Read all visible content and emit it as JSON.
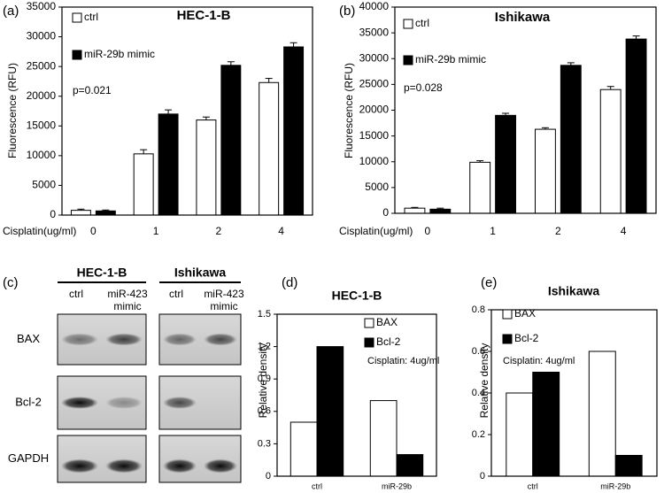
{
  "chart_data": [
    {
      "type": "bar",
      "panel_label": "(a)",
      "title": "HEC-1-B",
      "y_label": "Fluorescence (RFU)",
      "x_label": "Cisplatin(ug/ml)",
      "annotation": "p=0.021",
      "categories": [
        "0",
        "1",
        "2",
        "4"
      ],
      "series": [
        {
          "name": "ctrl",
          "color": "#ffffff",
          "values": [
            800,
            10300,
            16000,
            22300
          ],
          "errors": [
            200,
            700,
            500,
            700
          ]
        },
        {
          "name": "miR-29b mimic",
          "color": "#000000",
          "values": [
            700,
            17000,
            25200,
            28300
          ],
          "errors": [
            150,
            700,
            600,
            700
          ]
        }
      ],
      "ylim": [
        0,
        35000
      ],
      "yticks": [
        0,
        5000,
        10000,
        15000,
        20000,
        25000,
        30000,
        35000
      ]
    },
    {
      "type": "bar",
      "panel_label": "(b)",
      "title": "Ishikawa",
      "y_label": "Fluorescence (RFU)",
      "x_label": "Cisplatin(ug/ml)",
      "annotation": "p=0.028",
      "categories": [
        "0",
        "1",
        "2",
        "4"
      ],
      "series": [
        {
          "name": "ctrl",
          "color": "#ffffff",
          "values": [
            1000,
            9900,
            16300,
            24000
          ],
          "errors": [
            150,
            300,
            300,
            600
          ]
        },
        {
          "name": "miR-29b mimic",
          "color": "#000000",
          "values": [
            800,
            19000,
            28700,
            33800
          ],
          "errors": [
            200,
            400,
            500,
            600
          ]
        }
      ],
      "ylim": [
        0,
        40000
      ],
      "yticks": [
        0,
        5000,
        10000,
        15000,
        20000,
        25000,
        30000,
        35000,
        40000
      ]
    },
    {
      "type": "bar",
      "panel_label": "(d)",
      "title": "HEC-1-B",
      "y_label": "Relative density",
      "annotation": "Cisplatin: 4ug/ml",
      "categories": [
        "ctrl",
        "miR-29b"
      ],
      "series": [
        {
          "name": "BAX",
          "color": "#ffffff",
          "values": [
            0.5,
            0.7
          ]
        },
        {
          "name": "Bcl-2",
          "color": "#000000",
          "values": [
            1.2,
            0.2
          ]
        }
      ],
      "ylim": [
        0,
        1.5
      ],
      "yticks": [
        0,
        0.3,
        0.6,
        0.9,
        1.2,
        1.5
      ]
    },
    {
      "type": "bar",
      "panel_label": "(e)",
      "title": "Ishikawa",
      "y_label": "Relative density",
      "annotation": "Cisplatin: 4ug/ml",
      "categories": [
        "ctrl",
        "miR-29b"
      ],
      "series": [
        {
          "name": "BAX",
          "color": "#ffffff",
          "values": [
            0.4,
            0.6
          ]
        },
        {
          "name": "Bcl-2",
          "color": "#000000",
          "values": [
            0.5,
            0.1
          ]
        }
      ],
      "ylim": [
        0,
        0.8
      ],
      "yticks": [
        0,
        0.2,
        0.4,
        0.6,
        0.8
      ]
    }
  ],
  "blot": {
    "panel_label": "(c)",
    "groups": [
      {
        "title": "HEC-1-B",
        "lanes": [
          [
            "ctrl"
          ],
          [
            "miR-423",
            "mimic"
          ]
        ]
      },
      {
        "title": "Ishikawa",
        "lanes": [
          [
            "ctrl"
          ],
          [
            "miR-423",
            "mimic"
          ]
        ]
      }
    ],
    "rows": [
      "BAX",
      "Bcl-2",
      "GAPDH"
    ]
  }
}
